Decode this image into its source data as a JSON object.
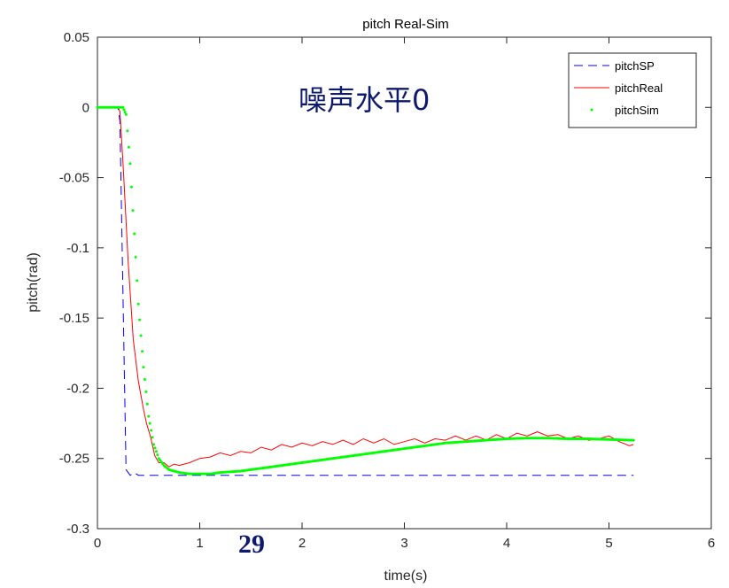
{
  "chart_data": {
    "type": "line",
    "title": "pitch Real-Sim",
    "xlabel": "time(s)",
    "ylabel": "pitch(rad)",
    "xlim": [
      0,
      6
    ],
    "ylim": [
      -0.3,
      0.05
    ],
    "xticks": [
      "0",
      "1",
      "2",
      "3",
      "4",
      "5",
      "6"
    ],
    "yticks": [
      "0.05",
      "0",
      "-0.05",
      "-0.1",
      "-0.15",
      "-0.2",
      "-0.25",
      "-0.3"
    ],
    "grid": false,
    "legend_position": "top-right",
    "annotations": [
      "噪声水平0"
    ],
    "series": [
      {
        "name": "pitchSP",
        "style": "dashed",
        "color": "#0000ff",
        "x": [
          0,
          0.2,
          0.22,
          0.28,
          0.32,
          0.36,
          0.4,
          0.45,
          1.0,
          2.0,
          3.0,
          4.0,
          5.24
        ],
        "y": [
          0,
          0,
          -0.01,
          -0.258,
          -0.262,
          -0.26,
          -0.262,
          -0.262,
          -0.262,
          -0.262,
          -0.262,
          -0.262,
          -0.262
        ]
      },
      {
        "name": "pitchReal",
        "style": "solid",
        "color": "#ff0000",
        "x": [
          0,
          0.2,
          0.22,
          0.25,
          0.3,
          0.35,
          0.4,
          0.45,
          0.48,
          0.52,
          0.56,
          0.6,
          0.65,
          0.7,
          0.75,
          0.8,
          0.9,
          1.0,
          1.1,
          1.2,
          1.3,
          1.4,
          1.5,
          1.6,
          1.7,
          1.8,
          1.9,
          2.0,
          2.1,
          2.2,
          2.3,
          2.4,
          2.5,
          2.6,
          2.7,
          2.8,
          2.9,
          3.0,
          3.1,
          3.2,
          3.3,
          3.4,
          3.5,
          3.6,
          3.7,
          3.8,
          3.9,
          4.0,
          4.1,
          4.2,
          4.3,
          4.4,
          4.5,
          4.6,
          4.7,
          4.8,
          4.9,
          5.0,
          5.1,
          5.2,
          5.24
        ],
        "y": [
          0,
          0,
          -0.003,
          -0.04,
          -0.11,
          -0.165,
          -0.195,
          -0.215,
          -0.225,
          -0.235,
          -0.248,
          -0.253,
          -0.253,
          -0.256,
          -0.254,
          -0.255,
          -0.253,
          -0.25,
          -0.249,
          -0.246,
          -0.248,
          -0.245,
          -0.246,
          -0.242,
          -0.244,
          -0.24,
          -0.242,
          -0.239,
          -0.241,
          -0.238,
          -0.24,
          -0.237,
          -0.24,
          -0.236,
          -0.239,
          -0.236,
          -0.24,
          -0.238,
          -0.236,
          -0.239,
          -0.236,
          -0.237,
          -0.234,
          -0.237,
          -0.234,
          -0.237,
          -0.233,
          -0.236,
          -0.232,
          -0.234,
          -0.231,
          -0.234,
          -0.233,
          -0.236,
          -0.234,
          -0.237,
          -0.236,
          -0.234,
          -0.238,
          -0.241,
          -0.24
        ]
      },
      {
        "name": "pitchSim",
        "style": "dots",
        "color": "#00ff00",
        "x": [
          0,
          0.25,
          0.28,
          0.32,
          0.36,
          0.4,
          0.45,
          0.5,
          0.55,
          0.6,
          0.65,
          0.7,
          0.8,
          0.9,
          1.0,
          1.1,
          1.2,
          1.4,
          1.6,
          1.8,
          2.0,
          2.2,
          2.4,
          2.6,
          2.8,
          3.0,
          3.2,
          3.4,
          3.6,
          3.8,
          4.0,
          4.2,
          4.4,
          4.6,
          4.8,
          5.0,
          5.24
        ],
        "y": [
          0,
          0,
          -0.005,
          -0.04,
          -0.09,
          -0.14,
          -0.185,
          -0.22,
          -0.24,
          -0.25,
          -0.255,
          -0.258,
          -0.26,
          -0.261,
          -0.261,
          -0.261,
          -0.26,
          -0.259,
          -0.257,
          -0.255,
          -0.253,
          -0.251,
          -0.249,
          -0.247,
          -0.245,
          -0.243,
          -0.241,
          -0.239,
          -0.238,
          -0.237,
          -0.236,
          -0.2355,
          -0.2355,
          -0.236,
          -0.236,
          -0.2365,
          -0.237
        ]
      }
    ]
  },
  "page_number": "29"
}
